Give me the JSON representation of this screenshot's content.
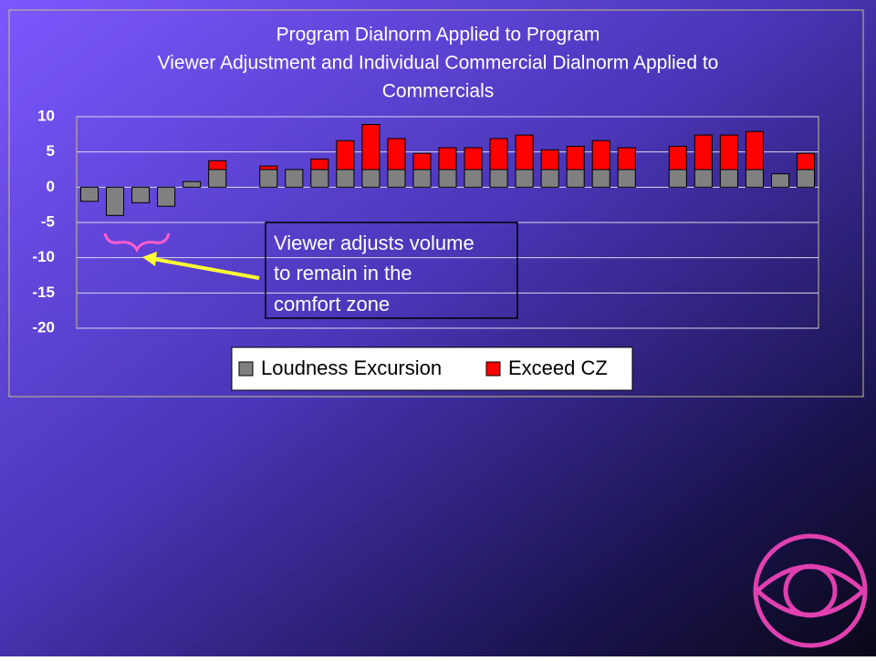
{
  "chart_data": {
    "type": "bar",
    "title": [
      "Program Dialnorm Applied to Program",
      "Viewer Adjustment and Individual Commercial Dialnorm Applied to",
      "Commercials"
    ],
    "categories": [
      null,
      null,
      null,
      null,
      null,
      null,
      null,
      null,
      null,
      null,
      null,
      null,
      null,
      null,
      null,
      null,
      null,
      null,
      null,
      null,
      null,
      null,
      null,
      null,
      null,
      null,
      null,
      null,
      null
    ],
    "series": [
      {
        "name": "Loudness Excursion",
        "color": "#808080",
        "values": [
          -2,
          -4,
          -2.2,
          -2.7,
          0.8,
          2.5,
          null,
          2.5,
          2.5,
          2.5,
          2.5,
          2.5,
          2.5,
          2.5,
          2.5,
          2.5,
          2.5,
          2.5,
          2.5,
          2.5,
          2.5,
          2.5,
          null,
          2.5,
          2.5,
          2.5,
          2.5,
          1.9,
          2.5
        ]
      },
      {
        "name": "Exceed CZ",
        "color": "#ff0000",
        "values": [
          0,
          0,
          0,
          0,
          0,
          1.25,
          null,
          0.5,
          0,
          1.5,
          4.1,
          6.4,
          4.4,
          2.3,
          3.1,
          3.1,
          4.4,
          4.9,
          2.8,
          3.3,
          4.1,
          3.1,
          null,
          3.3,
          4.9,
          4.9,
          5.4,
          0,
          2.3
        ]
      }
    ],
    "ylim": [
      -20,
      10
    ],
    "yticks": [
      10,
      5,
      0,
      -5,
      -10,
      -15,
      -20
    ],
    "grid": true,
    "annotation": [
      "Viewer adjusts volume",
      "to remain in the",
      "comfort zone"
    ]
  }
}
